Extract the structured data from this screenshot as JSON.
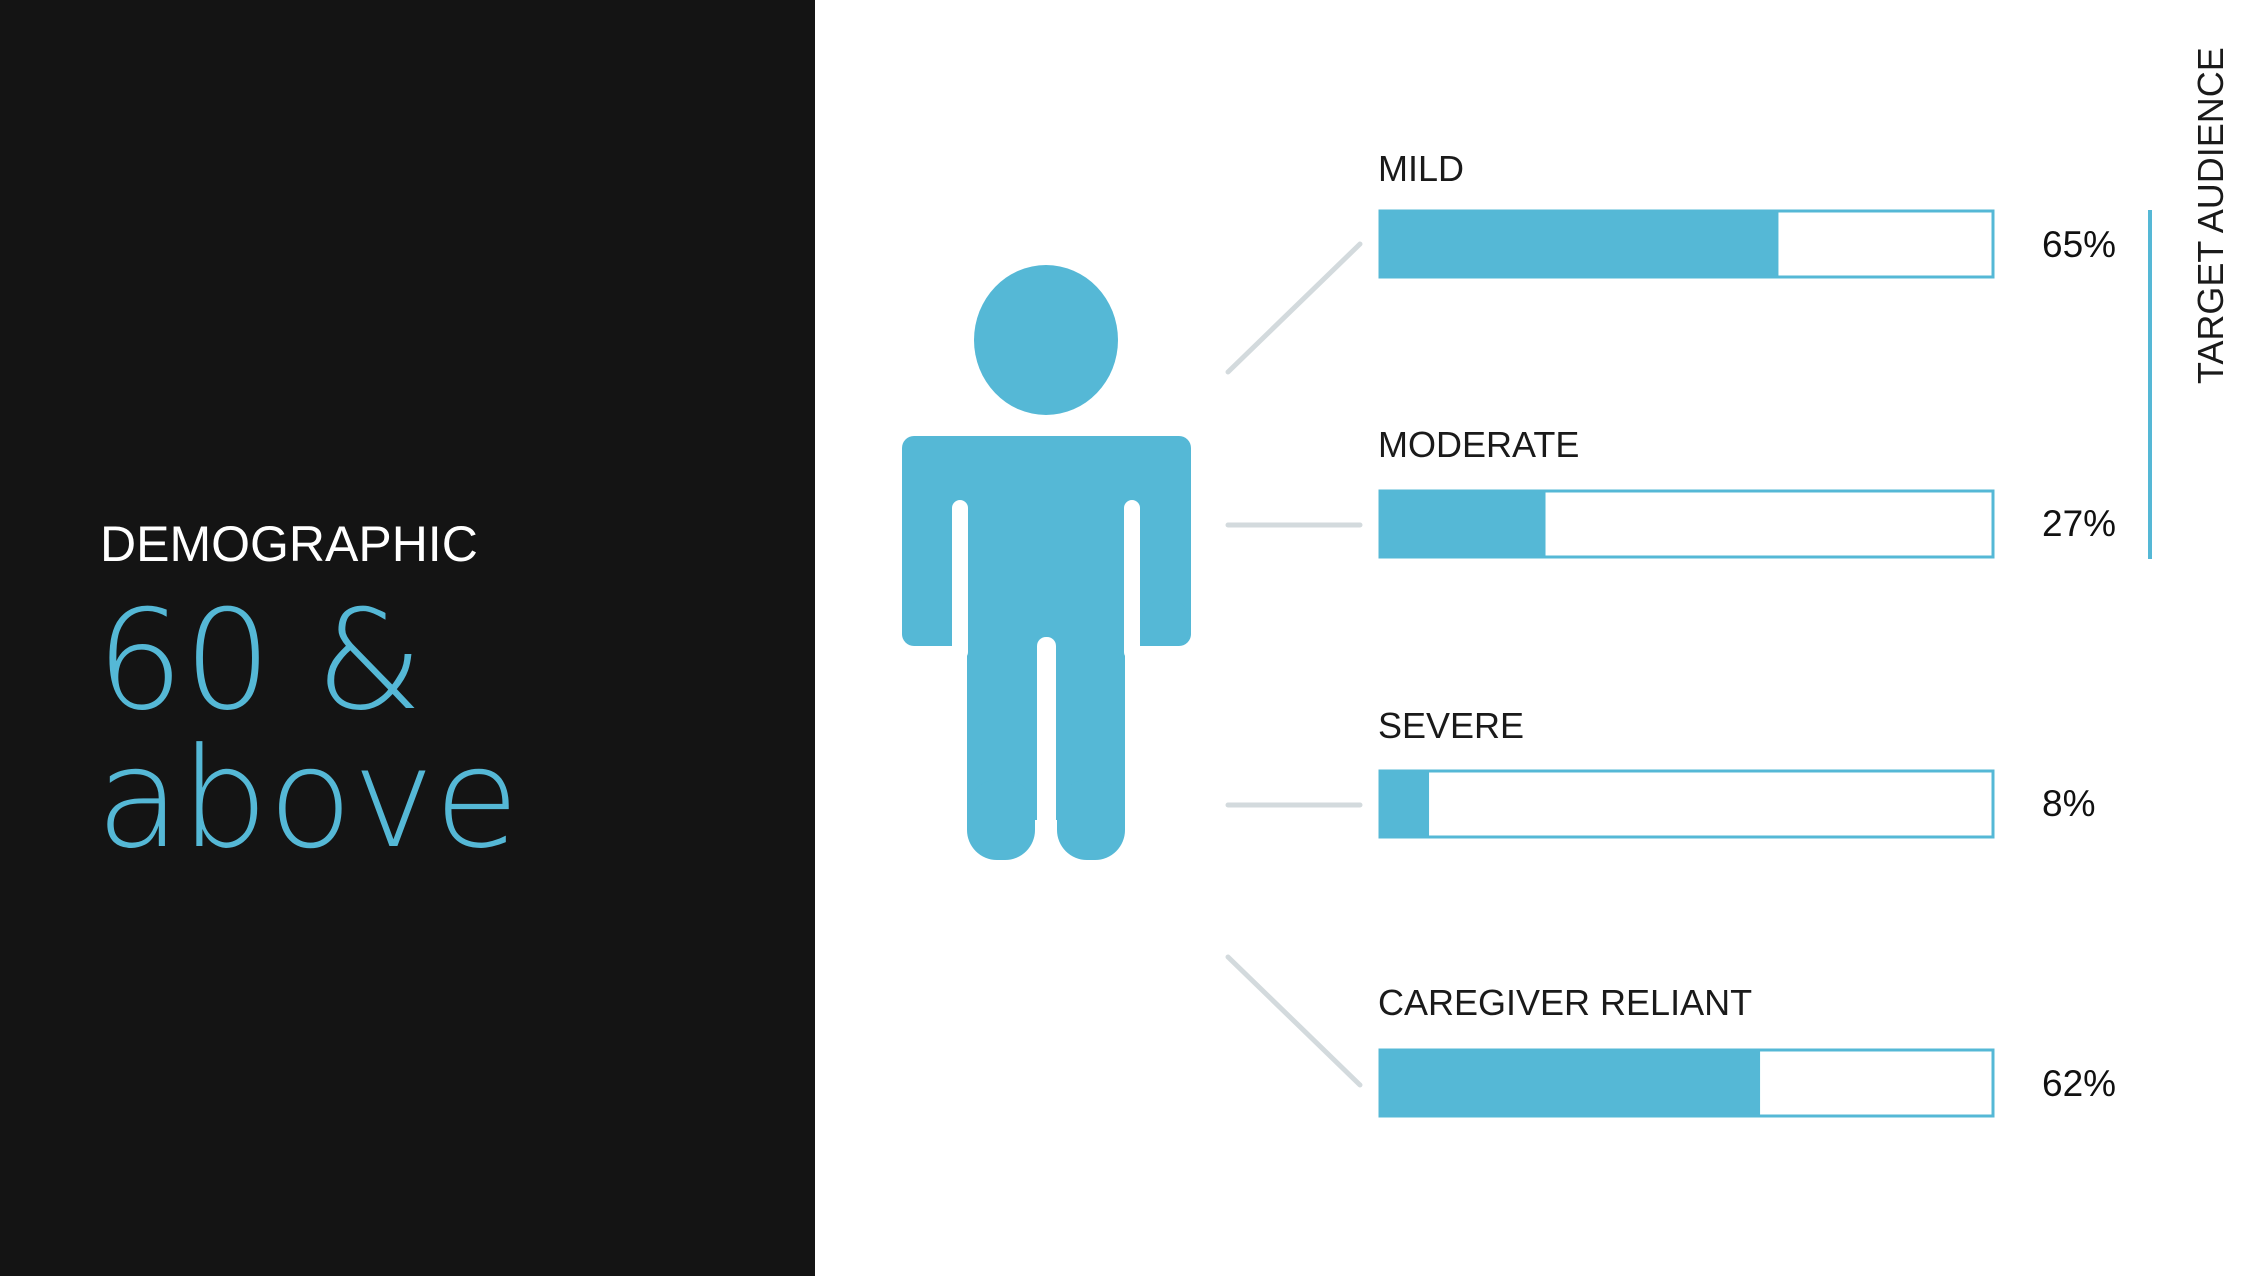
{
  "panel": {
    "heading": "DEMOGRAPHIC",
    "value": "60 & above"
  },
  "colors": {
    "accent": "#55b8d6",
    "panel_bg": "#141414",
    "connector": "#d3dadd"
  },
  "icon": "person-icon",
  "target_label": "TARGET AUDIENCE",
  "chart_data": {
    "type": "bar",
    "orientation": "horizontal",
    "categories": [
      "MILD",
      "MODERATE",
      "SEVERE",
      "CAREGIVER RELIANT"
    ],
    "values": [
      65,
      27,
      8,
      62
    ],
    "value_labels": [
      "65%",
      "27%",
      "8%",
      "62%"
    ],
    "xlim": [
      0,
      100
    ],
    "grouping": {
      "label": "TARGET AUDIENCE",
      "categories": [
        "MILD",
        "MODERATE"
      ]
    }
  }
}
